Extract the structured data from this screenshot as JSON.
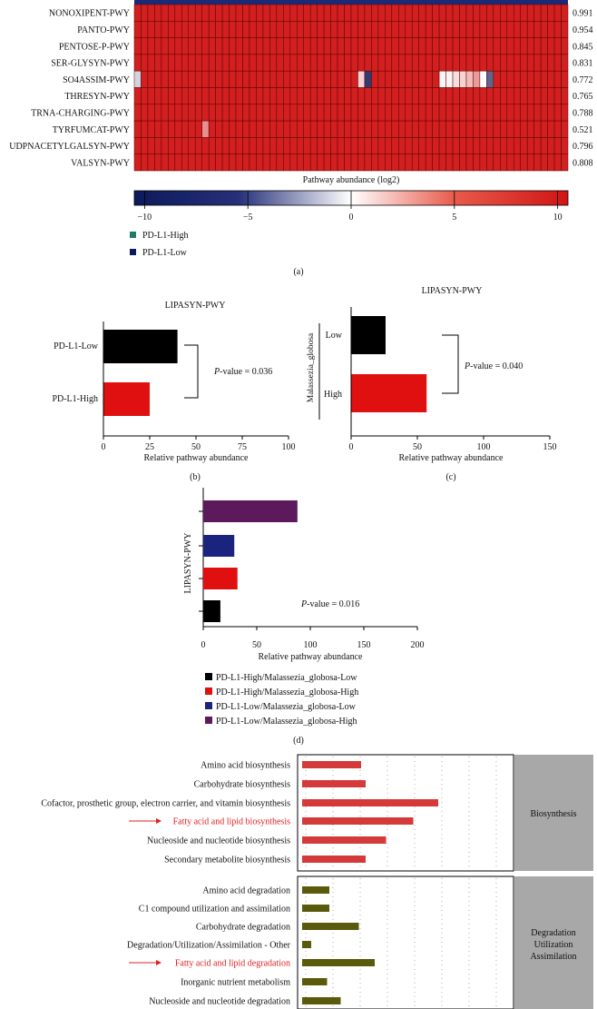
{
  "colors": {
    "heat_low": "#0c1a5a",
    "heat_mid": "#ffffff",
    "heat_high": "#d01414",
    "cell_outline": "#5a0000",
    "black_bar": "#000000",
    "red_bar": "#e01010",
    "navy_bar": "#1a237e",
    "purple_bar": "#5c1a5c",
    "olive_bar": "#5a5a0c",
    "biosynth_bar": "#d43a3a",
    "category_box": "#a8a8a8",
    "highlight_red": "#e02020",
    "high_legend": "#1f7a6a",
    "low_legend": "#0c1a5a"
  },
  "panel_a": {
    "row_labels": [
      "NONOXIPENT-PWY",
      "PANTO-PWY",
      "PENTOSE-P-PWY",
      "SER-GLYSYN-PWY",
      "SO4ASSIM-PWY",
      "THRESYN-PWY",
      "TRNA-CHARGING-PWY",
      "TYRFUMCAT-PWY",
      "UDPNACETYLGALSYN-PWY",
      "VALSYN-PWY"
    ],
    "row_values": [
      "0.991",
      "0.954",
      "0.845",
      "0.831",
      "0.772",
      "0.765",
      "0.788",
      "0.521",
      "0.796",
      "0.808"
    ],
    "colorbar_title": "Pathway abundance (log2)",
    "colorbar_ticks": [
      "−10",
      "−5",
      "0",
      "5",
      "10"
    ],
    "colorbar_tick_values": [
      -10,
      -5,
      0,
      5,
      10
    ],
    "colorbar_range": [
      -10.5,
      10.5
    ],
    "legend": [
      "PD-L1-High",
      "PD-L1-Low"
    ],
    "caption": "(a)"
  },
  "panel_b": {
    "title": "LIPASYN-PWY",
    "categories": [
      "PD-L1-Low",
      "PD-L1-High"
    ],
    "values": [
      40,
      25
    ],
    "pvalue_prefix": "P",
    "pvalue_text": "-value = 0.036",
    "xlabel": "Relative pathway abundance",
    "xticks": [
      "0",
      "25",
      "50",
      "75",
      "100"
    ],
    "xlim": [
      0,
      100
    ],
    "caption": "(b)"
  },
  "panel_c": {
    "title": "LIPASYN-PWY",
    "group_label": "Malassezia_globosa",
    "categories": [
      "Low",
      "High"
    ],
    "values": [
      26,
      57
    ],
    "pvalue_prefix": "P",
    "pvalue_text": "-value = 0.040",
    "xlabel": "Relative pathway abundance",
    "xticks": [
      "0",
      "50",
      "100",
      "150"
    ],
    "xlim": [
      0,
      150
    ],
    "caption": "(c)"
  },
  "panel_d": {
    "ylabel": "LIPASYN-PWY",
    "values": [
      88,
      29,
      32,
      16
    ],
    "pvalue_prefix": "P",
    "pvalue_text": "-value = 0.016",
    "xlabel": "Relative pathway abundance",
    "xticks": [
      "0",
      "50",
      "100",
      "150",
      "200"
    ],
    "xlim": [
      0,
      200
    ],
    "legend": [
      "PD-L1-High/Malassezia_globosa-Low",
      "PD-L1-High/Malassezia_globosa-High",
      "PD-L1-Low/Malassezia_globosa-Low",
      "PD-L1-Low/Malassezia_globosa-High"
    ],
    "caption": "(d)"
  },
  "panel_e": {
    "biosynthesis": {
      "label": "Biosynthesis",
      "items": [
        "Amino acid biosynthesis",
        "Carbohydrate biosynthesis",
        "Cofactor, prosthetic group, electron carrier, and vitamin biosynthesis",
        "Fatty acid and lipid biosynthesis",
        "Nucleoside and nucleotide biosynthesis",
        "Secondary metabolite biosynthesis"
      ],
      "values": [
        13,
        14,
        30,
        24.5,
        18.5,
        14
      ],
      "highlight_index": 3
    },
    "degradation": {
      "label_lines": [
        "Degradation",
        "Utilization",
        "Assimilation"
      ],
      "items": [
        "Amino acid degradation",
        "C1 compound utilization and assimilation",
        "Carbohydrate degradation",
        "Degradation/Utilization/Assimilation - Other",
        "Fatty acid and lipid degradation",
        "Inorganic nutrient metabolism",
        "Nucleoside and nucleotide degradation"
      ],
      "values": [
        6,
        6,
        12.5,
        2,
        16,
        5.5,
        8.5
      ],
      "highlight_index": 4
    }
  },
  "chart_data": [
    {
      "type": "heatmap",
      "title": "",
      "rows": [
        "NONOXIPENT-PWY",
        "PANTO-PWY",
        "PENTOSE-P-PWY",
        "SER-GLYSYN-PWY",
        "SO4ASSIM-PWY",
        "THRESYN-PWY",
        "TRNA-CHARGING-PWY",
        "TYRFUMCAT-PWY",
        "UDPNACETYLGALSYN-PWY",
        "VALSYN-PWY"
      ],
      "row_scores": [
        0.991,
        0.954,
        0.845,
        0.831,
        0.772,
        0.765,
        0.788,
        0.521,
        0.796,
        0.808
      ],
      "n_columns": 64,
      "typical_value": 10,
      "exceptions": [
        {
          "row": "SO4ASSIM-PWY",
          "columns": [
            0,
            33,
            34,
            45,
            46,
            47,
            48,
            49,
            50,
            51,
            52
          ],
          "values": [
            -2,
            2,
            -9,
            0.5,
            0.5,
            1.5,
            2,
            3,
            4.5,
            0,
            -7
          ]
        },
        {
          "row": "TYRFUMCAT-PWY",
          "columns": [
            10
          ],
          "values": [
            5
          ]
        }
      ],
      "colorbar_label": "Pathway abundance (log2)",
      "colorbar_range": [
        -10.5,
        10.5
      ],
      "legend": [
        "PD-L1-High",
        "PD-L1-Low"
      ]
    },
    {
      "type": "bar",
      "orientation": "horizontal",
      "title": "LIPASYN-PWY",
      "categories": [
        "PD-L1-Low",
        "PD-L1-High"
      ],
      "values": [
        40,
        25
      ],
      "xlabel": "Relative pathway abundance",
      "xlim": [
        0,
        100
      ],
      "annotation": "P-value = 0.036"
    },
    {
      "type": "bar",
      "orientation": "horizontal",
      "title": "LIPASYN-PWY",
      "categories": [
        "Low",
        "High"
      ],
      "group_label": "Malassezia_globosa",
      "values": [
        26,
        57
      ],
      "xlabel": "Relative pathway abundance",
      "xlim": [
        0,
        150
      ],
      "annotation": "P-value = 0.040"
    },
    {
      "type": "bar",
      "orientation": "horizontal",
      "title": "",
      "ylabel": "LIPASYN-PWY",
      "series": [
        {
          "name": "PD-L1-Low/Malassezia_globosa-High",
          "values": [
            88
          ]
        },
        {
          "name": "PD-L1-Low/Malassezia_globosa-Low",
          "values": [
            29
          ]
        },
        {
          "name": "PD-L1-High/Malassezia_globosa-High",
          "values": [
            32
          ]
        },
        {
          "name": "PD-L1-High/Malassezia_globosa-Low",
          "values": [
            16
          ]
        }
      ],
      "xlabel": "Relative pathway abundance",
      "xlim": [
        0,
        200
      ],
      "annotation": "P-value = 0.016"
    },
    {
      "type": "bar",
      "orientation": "horizontal",
      "title": "",
      "groups": [
        {
          "name": "Biosynthesis",
          "categories": [
            "Amino acid biosynthesis",
            "Carbohydrate biosynthesis",
            "Cofactor, prosthetic group, electron carrier, and vitamin biosynthesis",
            "Fatty acid and lipid biosynthesis",
            "Nucleoside and nucleotide biosynthesis",
            "Secondary metabolite biosynthesis"
          ],
          "values": [
            13,
            14,
            30,
            24.5,
            18.5,
            14
          ]
        },
        {
          "name": "Degradation Utilization Assimilation",
          "categories": [
            "Amino acid degradation",
            "C1 compound utilization and assimilation",
            "Carbohydrate degradation",
            "Degradation/Utilization/Assimilation - Other",
            "Fatty acid and lipid degradation",
            "Inorganic nutrient metabolism",
            "Nucleoside and nucleotide degradation"
          ],
          "values": [
            6,
            6,
            12.5,
            2,
            16,
            5.5,
            8.5
          ]
        }
      ],
      "xlim": [
        0,
        45
      ],
      "grid": true
    }
  ]
}
